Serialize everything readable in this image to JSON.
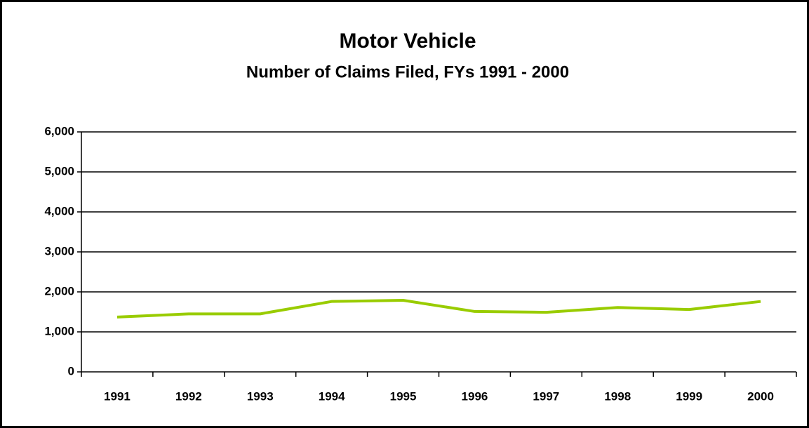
{
  "chart_data": {
    "type": "line",
    "title": "Motor Vehicle",
    "subtitle": "Number of Claims Filed, FYs 1991 - 2000",
    "categories": [
      "1991",
      "1992",
      "1993",
      "1994",
      "1995",
      "1996",
      "1997",
      "1998",
      "1999",
      "2000"
    ],
    "series": [
      {
        "name": "Claims Filed",
        "color": "#99cc00",
        "values": [
          1370,
          1450,
          1450,
          1760,
          1790,
          1510,
          1490,
          1610,
          1560,
          1760
        ]
      }
    ],
    "ylim": [
      0,
      6000
    ],
    "yticks": [
      0,
      {
        "value": 1000,
        "label": "1,000"
      },
      {
        "value": 2000,
        "label": "2,000"
      },
      {
        "value": 3000,
        "label": "3,000"
      },
      {
        "value": 4000,
        "label": "4,000"
      },
      {
        "value": 5000,
        "label": "5,000"
      },
      {
        "value": 6000,
        "label": "6,000"
      }
    ],
    "grid": true,
    "legend": false
  }
}
